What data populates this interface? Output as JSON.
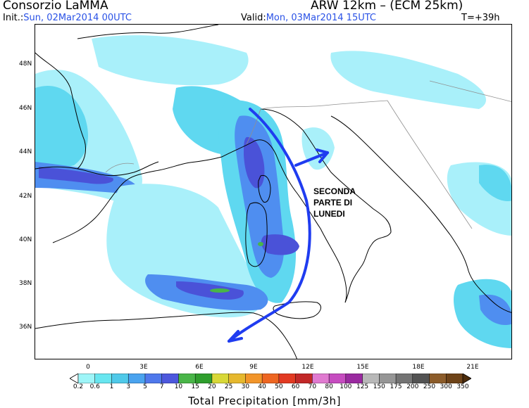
{
  "header": {
    "title_left": "Consorzio LaMMA",
    "title_right": "ARW 12km – (ECM 25km)",
    "init_label": "Init.:",
    "init_value": "Sun, 02Mar2014 00UTC",
    "valid_label": "Valid:",
    "valid_value": "Mon, 03Mar2014 15UTC",
    "step": "T=+39h"
  },
  "axes": {
    "lat_labels": [
      "48N",
      "46N",
      "44N",
      "42N",
      "40N",
      "38N",
      "36N"
    ],
    "lon_labels": [
      "0",
      "3E",
      "6E",
      "9E",
      "12E",
      "15E",
      "18E",
      "21E"
    ]
  },
  "annotation": {
    "lines": [
      "SECONDA",
      "PARTE DI",
      "LUNEDI"
    ],
    "arrow_color": "#1f3cf0"
  },
  "colorbar": {
    "title": "Total Precipitation [mm/3h]",
    "labels": [
      "0.2",
      "0.6",
      "1",
      "3",
      "5",
      "7",
      "10",
      "15",
      "20",
      "25",
      "30",
      "40",
      "50",
      "60",
      "70",
      "80",
      "100",
      "125",
      "150",
      "175",
      "200",
      "250",
      "300",
      "350"
    ],
    "colors": [
      "#9ef5f8",
      "#68e6f0",
      "#4fc9e9",
      "#4aa3ef",
      "#4f78ec",
      "#4d58dd",
      "#49b548",
      "#2f9e2d",
      "#d8d838",
      "#e6b82e",
      "#f2952a",
      "#ee6622",
      "#e23a22",
      "#c22828",
      "#e07ad0",
      "#c64cc0",
      "#9a2aa0",
      "#b8b8b8",
      "#969696",
      "#747474",
      "#535353",
      "#8c5c2a",
      "#6e4318",
      "#4d2d0c"
    ]
  },
  "map": {
    "precip_light": "#a9f0fa",
    "precip_med": "#5fd8f0",
    "precip_blue": "#4f8ef0",
    "precip_dark": "#4a52d8",
    "precip_green": "#49b548",
    "coast_color": "#000000",
    "border_color": "#909090"
  }
}
